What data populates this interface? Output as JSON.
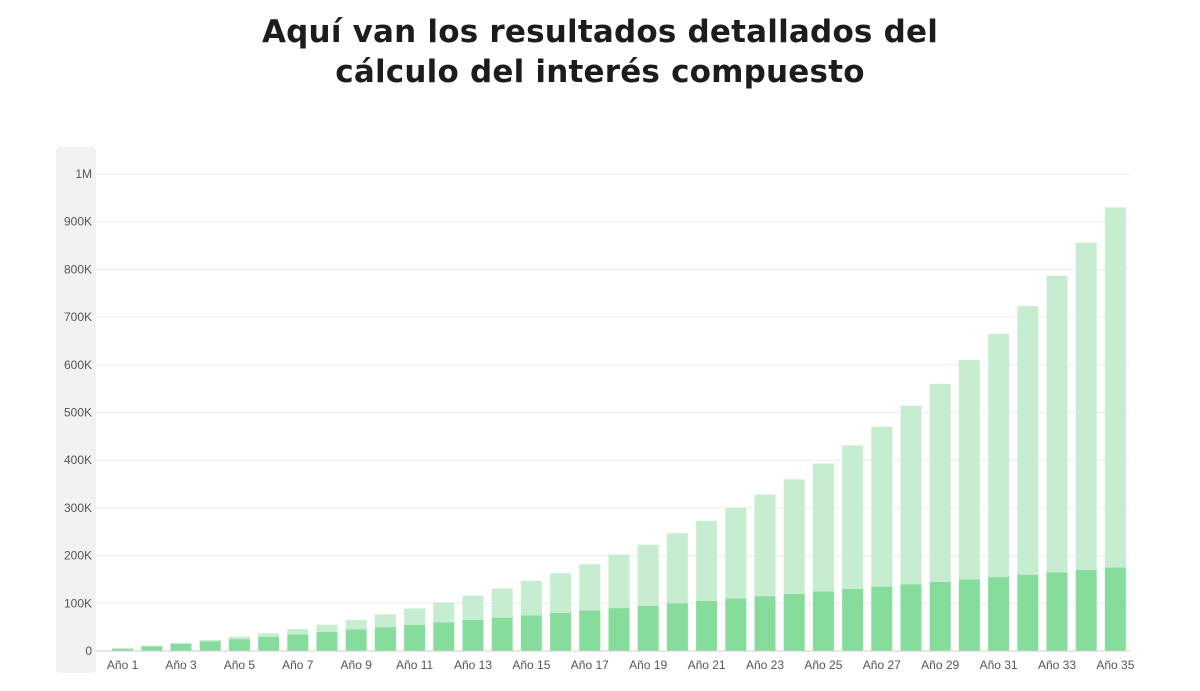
{
  "title": {
    "line1": "Aquí van los resultados detallados del",
    "line2": "cálculo del interés compuesto"
  },
  "colors": {
    "deposits": "#86dc9b",
    "interest": "#c6edcf",
    "grid": "#ececec",
    "axis_band": "#f2f2f2",
    "tick_text": "#555555"
  },
  "chart_data": {
    "type": "bar",
    "stacked": true,
    "categories": [
      "Año 1",
      "Año 2",
      "Año 3",
      "Año 4",
      "Año 5",
      "Año 6",
      "Año 7",
      "Año 8",
      "Año 9",
      "Año 10",
      "Año 11",
      "Año 12",
      "Año 13",
      "Año 14",
      "Año 15",
      "Año 16",
      "Año 17",
      "Año 18",
      "Año 19",
      "Año 20",
      "Año 21",
      "Año 22",
      "Año 23",
      "Año 24",
      "Año 25",
      "Año 26",
      "Año 27",
      "Año 28",
      "Año 29",
      "Año 30",
      "Año 31",
      "Año 32",
      "Año 33",
      "Año 34",
      "Año 35"
    ],
    "x_tick_labels": [
      "Año 1",
      "Año 3",
      "Año 5",
      "Año 7",
      "Año 9",
      "Año 11",
      "Año 13",
      "Año 15",
      "Año 17",
      "Año 19",
      "Año 21",
      "Año 23",
      "Año 25",
      "Año 27",
      "Año 29",
      "Año 31",
      "Año 33",
      "Año 35"
    ],
    "y_ticks": [
      0,
      100000,
      200000,
      300000,
      400000,
      500000,
      600000,
      700000,
      800000,
      900000,
      1000000
    ],
    "y_tick_labels": [
      "0",
      "100K",
      "200K",
      "300K",
      "400K",
      "500K",
      "600K",
      "700K",
      "800K",
      "900K",
      "1M"
    ],
    "ylim": [
      0,
      1000000
    ],
    "grid": true,
    "legend": "none",
    "series": [
      {
        "values": [
          5000,
          10000,
          15000,
          20000,
          25000,
          30000,
          35000,
          40000,
          45000,
          50000,
          55000,
          60000,
          65000,
          70000,
          75000,
          80000,
          85000,
          90000,
          95000,
          100000,
          105000,
          110000,
          115000,
          120000,
          125000,
          130000,
          135000,
          140000,
          145000,
          150000,
          155000,
          160000,
          165000,
          170000,
          175000
        ]
      },
      {
        "values": [
          0,
          1000,
          2000,
          3000,
          5000,
          7000,
          11000,
          15000,
          20000,
          27000,
          34000,
          42000,
          51000,
          61000,
          72000,
          83000,
          97000,
          112000,
          128000,
          147000,
          168000,
          190000,
          213000,
          240000,
          268000,
          301000,
          335000,
          374000,
          415000,
          460000,
          510000,
          563000,
          622000,
          686000,
          755000
        ]
      }
    ]
  }
}
